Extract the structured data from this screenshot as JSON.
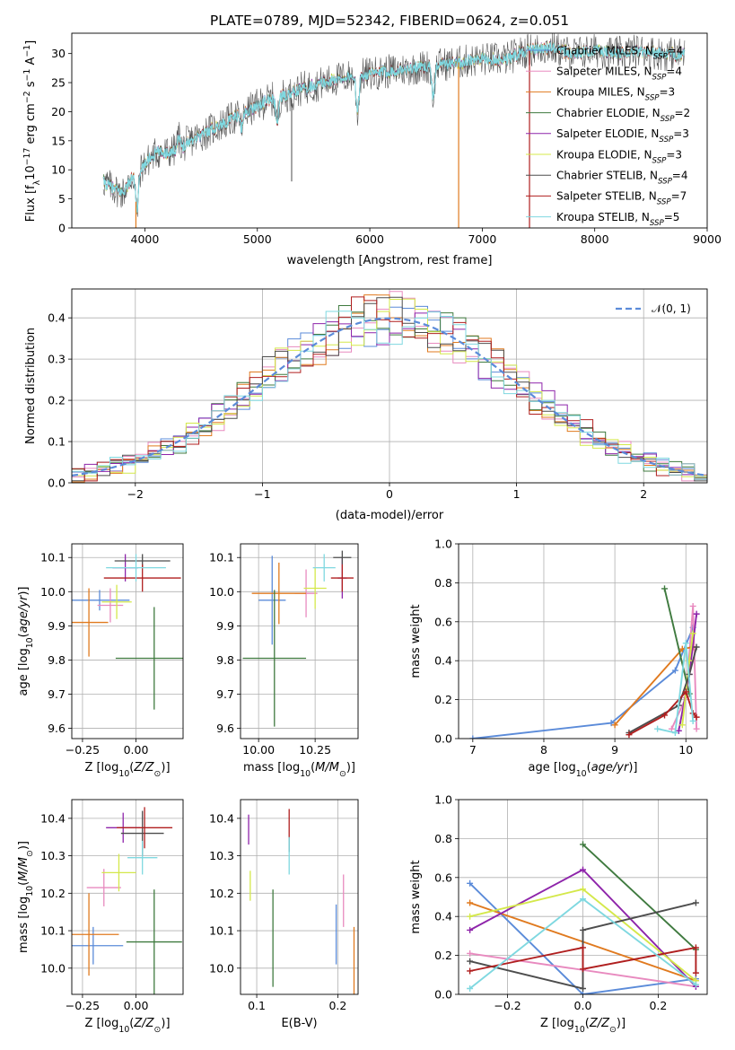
{
  "colors": {
    "Chabrier MILES": "#5b8bd9",
    "Salpeter MILES": "#e88abf",
    "Kroupa MILES": "#e07a1f",
    "Chabrier ELODIE": "#3f7a3f",
    "Salpeter ELODIE": "#8e24aa",
    "Kroupa ELODIE": "#d4e84a",
    "Chabrier STELIB": "#4d4d4d",
    "Salpeter STELIB": "#b01f1f",
    "Kroupa STELIB": "#7fd8e0",
    "normal": "#5b8bd9",
    "grid": "#b0b0b0"
  },
  "chart_data": [
    {
      "id": "spectrum",
      "type": "line",
      "title": "PLATE=0789, MJD=52342, FIBERID=0624, z=0.051",
      "xlabel": "wavelength [Angstrom, rest frame]",
      "ylabel": "Flux [fλ10⁻¹⁷ erg cm⁻² s⁻¹ A⁻¹]",
      "xlim": [
        3350,
        9000
      ],
      "ylim": [
        0,
        33.5
      ],
      "xticks": [
        4000,
        5000,
        6000,
        7000,
        8000,
        9000
      ],
      "yticks": [
        0,
        5,
        10,
        15,
        20,
        25,
        30
      ],
      "grid": false,
      "legend_position": "top-right",
      "legend": [
        {
          "name": "Chabrier MILES",
          "nssp": "4"
        },
        {
          "name": "Salpeter MILES",
          "nssp": "4"
        },
        {
          "name": "Kroupa MILES",
          "nssp": "3"
        },
        {
          "name": "Chabrier ELODIE",
          "nssp": "2"
        },
        {
          "name": "Salpeter ELODIE",
          "nssp": "3"
        },
        {
          "name": "Kroupa ELODIE",
          "nssp": "3"
        },
        {
          "name": "Chabrier STELIB",
          "nssp": "4"
        },
        {
          "name": "Salpeter STELIB",
          "nssp": "7"
        },
        {
          "name": "Kroupa STELIB",
          "nssp": "5"
        }
      ],
      "data_trend": [
        [
          3630,
          8
        ],
        [
          3700,
          7
        ],
        [
          3800,
          6
        ],
        [
          3900,
          9
        ],
        [
          4000,
          11
        ],
        [
          4100,
          13
        ],
        [
          4200,
          13
        ],
        [
          4300,
          13.5
        ],
        [
          4400,
          15
        ],
        [
          4500,
          16
        ],
        [
          4600,
          17
        ],
        [
          4700,
          18
        ],
        [
          4800,
          19
        ],
        [
          4900,
          20
        ],
        [
          5000,
          21
        ],
        [
          5100,
          22
        ],
        [
          5200,
          22.5
        ],
        [
          5300,
          23
        ],
        [
          5400,
          24
        ],
        [
          5500,
          24.5
        ],
        [
          5600,
          25
        ],
        [
          5700,
          25.5
        ],
        [
          5800,
          26
        ],
        [
          6000,
          26.5
        ],
        [
          6200,
          27
        ],
        [
          6400,
          27.5
        ],
        [
          6600,
          28
        ],
        [
          6800,
          28.5
        ],
        [
          7000,
          29
        ],
        [
          7200,
          29
        ],
        [
          7400,
          30.5
        ],
        [
          7600,
          31
        ],
        [
          7800,
          30
        ],
        [
          8000,
          30.5
        ],
        [
          8200,
          30
        ],
        [
          8400,
          30.5
        ],
        [
          8600,
          30
        ],
        [
          8800,
          29.8
        ]
      ],
      "absorption_dips": [
        [
          3930,
          2
        ],
        [
          4300,
          16
        ],
        [
          4860,
          17
        ],
        [
          5175,
          18
        ],
        [
          5890,
          19
        ],
        [
          6563,
          22
        ]
      ],
      "fit_dropouts": [
        {
          "x": 3920,
          "model": "Kroupa MILES"
        },
        {
          "x": 6790,
          "model": "Kroupa MILES"
        },
        {
          "x": 7420,
          "model": "Salpeter STELIB"
        }
      ]
    },
    {
      "id": "residuals",
      "type": "step",
      "xlabel": "(data-model)/error",
      "ylabel": "Normed distribution",
      "xlim": [
        -2.5,
        2.5
      ],
      "ylim": [
        0,
        0.47
      ],
      "xticks": [
        -2,
        -1,
        0,
        1,
        2
      ],
      "yticks": [
        0.0,
        0.1,
        0.2,
        0.3,
        0.4
      ],
      "grid": true,
      "bin_width": 0.1,
      "legend_position": "top-right",
      "normal_label": "𝒩(0, 1)",
      "normal_mean": 0,
      "normal_sigma": 1,
      "series": [
        {
          "key": "Chabrier MILES",
          "phase": 0.0
        },
        {
          "key": "Salpeter MILES",
          "phase": 1.3
        },
        {
          "key": "Kroupa MILES",
          "phase": 2.6
        },
        {
          "key": "Chabrier ELODIE",
          "phase": 3.9
        },
        {
          "key": "Salpeter ELODIE",
          "phase": 5.2
        },
        {
          "key": "Kroupa ELODIE",
          "phase": 0.7
        },
        {
          "key": "Chabrier STELIB",
          "phase": 2.0
        },
        {
          "key": "Salpeter STELIB",
          "phase": 3.3
        },
        {
          "key": "Kroupa STELIB",
          "phase": 4.6
        }
      ]
    },
    {
      "id": "age_vs_Z",
      "type": "errorbar",
      "xlabel": "Z [log₁₀(Z/Z⊙)]",
      "ylabel": "age  [log₁₀(age/yr)]",
      "xlim": [
        -0.3,
        0.22
      ],
      "ylim": [
        9.57,
        10.14
      ],
      "xticks": [
        -0.25,
        0.0
      ],
      "xticklabels": [
        "−0.25",
        "0.00"
      ],
      "yticks": [
        9.6,
        9.7,
        9.8,
        9.9,
        10.0,
        10.1
      ],
      "yticklabels": [
        "9.6",
        "9.7",
        "9.8",
        "9.9",
        "10.0",
        "10.1"
      ],
      "grid": true,
      "points": [
        {
          "key": "Chabrier MILES",
          "x": -0.17,
          "xerr": 0.14,
          "y": 9.975,
          "yerr": 0.03
        },
        {
          "key": "Salpeter MILES",
          "x": -0.12,
          "xerr": 0.06,
          "y": 9.96,
          "yerr": 0.05
        },
        {
          "key": "Kroupa MILES",
          "x": -0.22,
          "xerr": 0.09,
          "y": 9.91,
          "yerr": 0.1
        },
        {
          "key": "Chabrier ELODIE",
          "x": 0.085,
          "xerr": 0.18,
          "y": 9.805,
          "yerr": 0.15
        },
        {
          "key": "Salpeter ELODIE",
          "x": -0.05,
          "xerr": 0.06,
          "y": 10.07,
          "yerr": 0.04
        },
        {
          "key": "Kroupa ELODIE",
          "x": -0.09,
          "xerr": 0.07,
          "y": 9.97,
          "yerr": 0.05
        },
        {
          "key": "Chabrier STELIB",
          "x": 0.03,
          "xerr": 0.13,
          "y": 10.09,
          "yerr": 0.02
        },
        {
          "key": "Salpeter STELIB",
          "x": 0.03,
          "xerr": 0.18,
          "y": 10.04,
          "yerr": 0.04
        },
        {
          "key": "Kroupa STELIB",
          "x": 0.0,
          "xerr": 0.14,
          "y": 10.07,
          "yerr": 0.04
        }
      ]
    },
    {
      "id": "age_vs_mass",
      "type": "errorbar",
      "xlabel": "mass [log₁₀(M/M⊙)]",
      "ylabel": "",
      "xlim": [
        9.92,
        10.44
      ],
      "ylim": [
        9.57,
        10.14
      ],
      "xticks": [
        10.0,
        10.25
      ],
      "xticklabels": [
        "10.00",
        "10.25"
      ],
      "yticks": [
        9.6,
        9.7,
        9.8,
        9.9,
        10.0,
        10.1
      ],
      "yticklabels": [
        "9.6",
        "9.7",
        "9.8",
        "9.9",
        "10.0",
        "10.1"
      ],
      "grid": true,
      "points": [
        {
          "key": "Chabrier MILES",
          "x": 10.06,
          "xerr": 0.06,
          "y": 9.975,
          "yerr": 0.13
        },
        {
          "key": "Salpeter MILES",
          "x": 10.21,
          "xerr": 0.05,
          "y": 9.995,
          "yerr": 0.07
        },
        {
          "key": "Kroupa MILES",
          "x": 10.09,
          "xerr": 0.12,
          "y": 9.995,
          "yerr": 0.09
        },
        {
          "key": "Chabrier ELODIE",
          "x": 10.07,
          "xerr": 0.14,
          "y": 9.805,
          "yerr": 0.2
        },
        {
          "key": "Salpeter ELODIE",
          "x": 10.37,
          "xerr": 0.02,
          "y": 10.04,
          "yerr": 0.06
        },
        {
          "key": "Kroupa ELODIE",
          "x": 10.25,
          "xerr": 0.05,
          "y": 10.01,
          "yerr": 0.06
        },
        {
          "key": "Chabrier STELIB",
          "x": 10.37,
          "xerr": 0.04,
          "y": 10.1,
          "yerr": 0.02
        },
        {
          "key": "Salpeter STELIB",
          "x": 10.37,
          "xerr": 0.05,
          "y": 10.04,
          "yerr": 0.04
        },
        {
          "key": "Kroupa STELIB",
          "x": 10.29,
          "xerr": 0.05,
          "y": 10.07,
          "yerr": 0.04
        }
      ]
    },
    {
      "id": "massweight_vs_age",
      "type": "line",
      "xlabel": "age  [log₁₀(age/yr)]",
      "ylabel": "mass weight",
      "xlim": [
        6.8,
        10.3
      ],
      "ylim": [
        0,
        1
      ],
      "xticks": [
        7,
        8,
        9,
        10
      ],
      "yticks": [
        0.0,
        0.2,
        0.4,
        0.6,
        0.8,
        1.0
      ],
      "grid": true,
      "series": [
        {
          "key": "Chabrier MILES",
          "points": [
            [
              7.0,
              0.0
            ],
            [
              8.95,
              0.08
            ],
            [
              9.85,
              0.35
            ],
            [
              10.1,
              0.57
            ]
          ]
        },
        {
          "key": "Salpeter MILES",
          "points": [
            [
              9.8,
              0.05
            ],
            [
              10.0,
              0.21
            ],
            [
              10.1,
              0.68
            ],
            [
              10.15,
              0.05
            ]
          ]
        },
        {
          "key": "Kroupa MILES",
          "points": [
            [
              9.0,
              0.07
            ],
            [
              9.95,
              0.46
            ],
            [
              10.1,
              0.47
            ]
          ]
        },
        {
          "key": "Chabrier ELODIE",
          "points": [
            [
              9.7,
              0.77
            ],
            [
              10.05,
              0.23
            ]
          ]
        },
        {
          "key": "Salpeter ELODIE",
          "points": [
            [
              9.9,
              0.04
            ],
            [
              10.05,
              0.33
            ],
            [
              10.15,
              0.64
            ]
          ]
        },
        {
          "key": "Kroupa ELODIE",
          "points": [
            [
              9.95,
              0.07
            ],
            [
              10.05,
              0.4
            ],
            [
              10.1,
              0.54
            ]
          ]
        },
        {
          "key": "Chabrier STELIB",
          "points": [
            [
              9.2,
              0.03
            ],
            [
              9.9,
              0.17
            ],
            [
              10.05,
              0.33
            ],
            [
              10.15,
              0.47
            ]
          ]
        },
        {
          "key": "Salpeter STELIB",
          "points": [
            [
              9.2,
              0.02
            ],
            [
              9.7,
              0.12
            ],
            [
              10.0,
              0.24
            ],
            [
              10.1,
              0.13
            ],
            [
              10.15,
              0.11
            ]
          ]
        },
        {
          "key": "Kroupa STELIB",
          "points": [
            [
              9.6,
              0.05
            ],
            [
              9.85,
              0.03
            ],
            [
              10.0,
              0.49
            ],
            [
              10.1,
              0.09
            ]
          ]
        }
      ]
    },
    {
      "id": "mass_vs_Z",
      "type": "errorbar",
      "xlabel": "Z [log₁₀(Z/Z⊙)]",
      "ylabel": "mass [log₁₀(M/M⊙)]",
      "xlim": [
        -0.3,
        0.22
      ],
      "ylim": [
        9.93,
        10.45
      ],
      "xticks": [
        -0.25,
        0.0
      ],
      "xticklabels": [
        "−0.25",
        "0.00"
      ],
      "yticks": [
        10.0,
        10.1,
        10.2,
        10.3,
        10.4
      ],
      "yticklabels": [
        "10.0",
        "10.1",
        "10.2",
        "10.3",
        "10.4"
      ],
      "grid": true,
      "points": [
        {
          "key": "Chabrier MILES",
          "x": -0.2,
          "xerr": 0.14,
          "y": 10.06,
          "yerr": 0.05
        },
        {
          "key": "Salpeter MILES",
          "x": -0.15,
          "xerr": 0.08,
          "y": 10.215,
          "yerr": 0.05
        },
        {
          "key": "Kroupa MILES",
          "x": -0.22,
          "xerr": 0.14,
          "y": 10.09,
          "yerr": 0.11
        },
        {
          "key": "Chabrier ELODIE",
          "x": 0.085,
          "xerr": 0.13,
          "y": 10.07,
          "yerr": 0.14
        },
        {
          "key": "Salpeter ELODIE",
          "x": -0.06,
          "xerr": 0.08,
          "y": 10.375,
          "yerr": 0.04
        },
        {
          "key": "Kroupa ELODIE",
          "x": -0.08,
          "xerr": 0.08,
          "y": 10.255,
          "yerr": 0.05
        },
        {
          "key": "Chabrier STELIB",
          "x": 0.03,
          "xerr": 0.1,
          "y": 10.36,
          "yerr": 0.06
        },
        {
          "key": "Salpeter STELIB",
          "x": 0.04,
          "xerr": 0.13,
          "y": 10.375,
          "yerr": 0.055
        },
        {
          "key": "Kroupa STELIB",
          "x": 0.03,
          "xerr": 0.07,
          "y": 10.295,
          "yerr": 0.045
        }
      ]
    },
    {
      "id": "mass_vs_EBV",
      "type": "errorbar",
      "xlabel": "E(B-V)",
      "ylabel": "",
      "xlim": [
        0.08,
        0.225
      ],
      "ylim": [
        9.93,
        10.45
      ],
      "xticks": [
        0.1,
        0.2
      ],
      "xticklabels": [
        "0.1",
        "0.2"
      ],
      "yticks": [
        10.0,
        10.1,
        10.2,
        10.3,
        10.4
      ],
      "yticklabels": [
        "10.0",
        "10.1",
        "10.2",
        "10.3",
        "10.4"
      ],
      "grid": true,
      "points": [
        {
          "key": "Chabrier MILES",
          "x": 0.198,
          "xerr": 0.0,
          "y": 10.09,
          "yerr": 0.08
        },
        {
          "key": "Salpeter MILES",
          "x": 0.207,
          "xerr": 0.0,
          "y": 10.18,
          "yerr": 0.07
        },
        {
          "key": "Kroupa MILES",
          "x": 0.22,
          "xerr": 0.0,
          "y": 10.02,
          "yerr": 0.09
        },
        {
          "key": "Chabrier ELODIE",
          "x": 0.12,
          "xerr": 0.0,
          "y": 10.08,
          "yerr": 0.13
        },
        {
          "key": "Salpeter ELODIE",
          "x": 0.09,
          "xerr": 0.0,
          "y": 10.37,
          "yerr": 0.04
        },
        {
          "key": "Kroupa ELODIE",
          "x": 0.092,
          "xerr": 0.0,
          "y": 10.22,
          "yerr": 0.04
        },
        {
          "key": "Chabrier STELIB",
          "x": 0.14,
          "xerr": 0.0,
          "y": 10.33,
          "yerr": 0.02
        },
        {
          "key": "Salpeter STELIB",
          "x": 0.14,
          "xerr": 0.0,
          "y": 10.385,
          "yerr": 0.04
        },
        {
          "key": "Kroupa STELIB",
          "x": 0.14,
          "xerr": 0.0,
          "y": 10.3,
          "yerr": 0.05
        }
      ]
    },
    {
      "id": "massweight_vs_Z",
      "type": "line",
      "xlabel": "Z [log₁₀(Z/Z⊙)]",
      "ylabel": "mass weight",
      "xlim": [
        -0.33,
        0.33
      ],
      "ylim": [
        0,
        1
      ],
      "xticks": [
        -0.2,
        0.0,
        0.2
      ],
      "xticklabels": [
        "−0.2",
        "0.0",
        "0.2"
      ],
      "yticks": [
        0.0,
        0.2,
        0.4,
        0.6,
        0.8,
        1.0
      ],
      "grid": true,
      "series": [
        {
          "key": "Chabrier MILES",
          "points": [
            [
              -0.3,
              0.57
            ],
            [
              0.0,
              0.0
            ],
            [
              0.3,
              0.08
            ]
          ]
        },
        {
          "key": "Salpeter MILES",
          "points": [
            [
              -0.3,
              0.21
            ],
            [
              0.3,
              0.04
            ]
          ]
        },
        {
          "key": "Kroupa MILES",
          "points": [
            [
              -0.3,
              0.47
            ],
            [
              0.3,
              0.07
            ]
          ]
        },
        {
          "key": "Chabrier ELODIE",
          "points": [
            [
              0.0,
              0.77
            ],
            [
              0.3,
              0.23
            ]
          ]
        },
        {
          "key": "Salpeter ELODIE",
          "points": [
            [
              -0.3,
              0.33
            ],
            [
              0.0,
              0.64
            ],
            [
              0.3,
              0.04
            ]
          ]
        },
        {
          "key": "Kroupa ELODIE",
          "points": [
            [
              -0.3,
              0.4
            ],
            [
              0.0,
              0.54
            ],
            [
              0.3,
              0.07
            ]
          ]
        },
        {
          "key": "Chabrier STELIB",
          "points": [
            [
              -0.3,
              0.17
            ],
            [
              0.0,
              0.03
            ],
            [
              0.0,
              0.33
            ],
            [
              0.3,
              0.47
            ]
          ]
        },
        {
          "key": "Salpeter STELIB",
          "points": [
            [
              -0.3,
              0.12
            ],
            [
              0.0,
              0.24
            ],
            [
              0.0,
              0.13
            ],
            [
              0.3,
              0.24
            ],
            [
              0.3,
              0.11
            ]
          ]
        },
        {
          "key": "Kroupa STELIB",
          "points": [
            [
              -0.3,
              0.03
            ],
            [
              0.0,
              0.49
            ],
            [
              0.3,
              0.05
            ]
          ]
        }
      ]
    }
  ]
}
